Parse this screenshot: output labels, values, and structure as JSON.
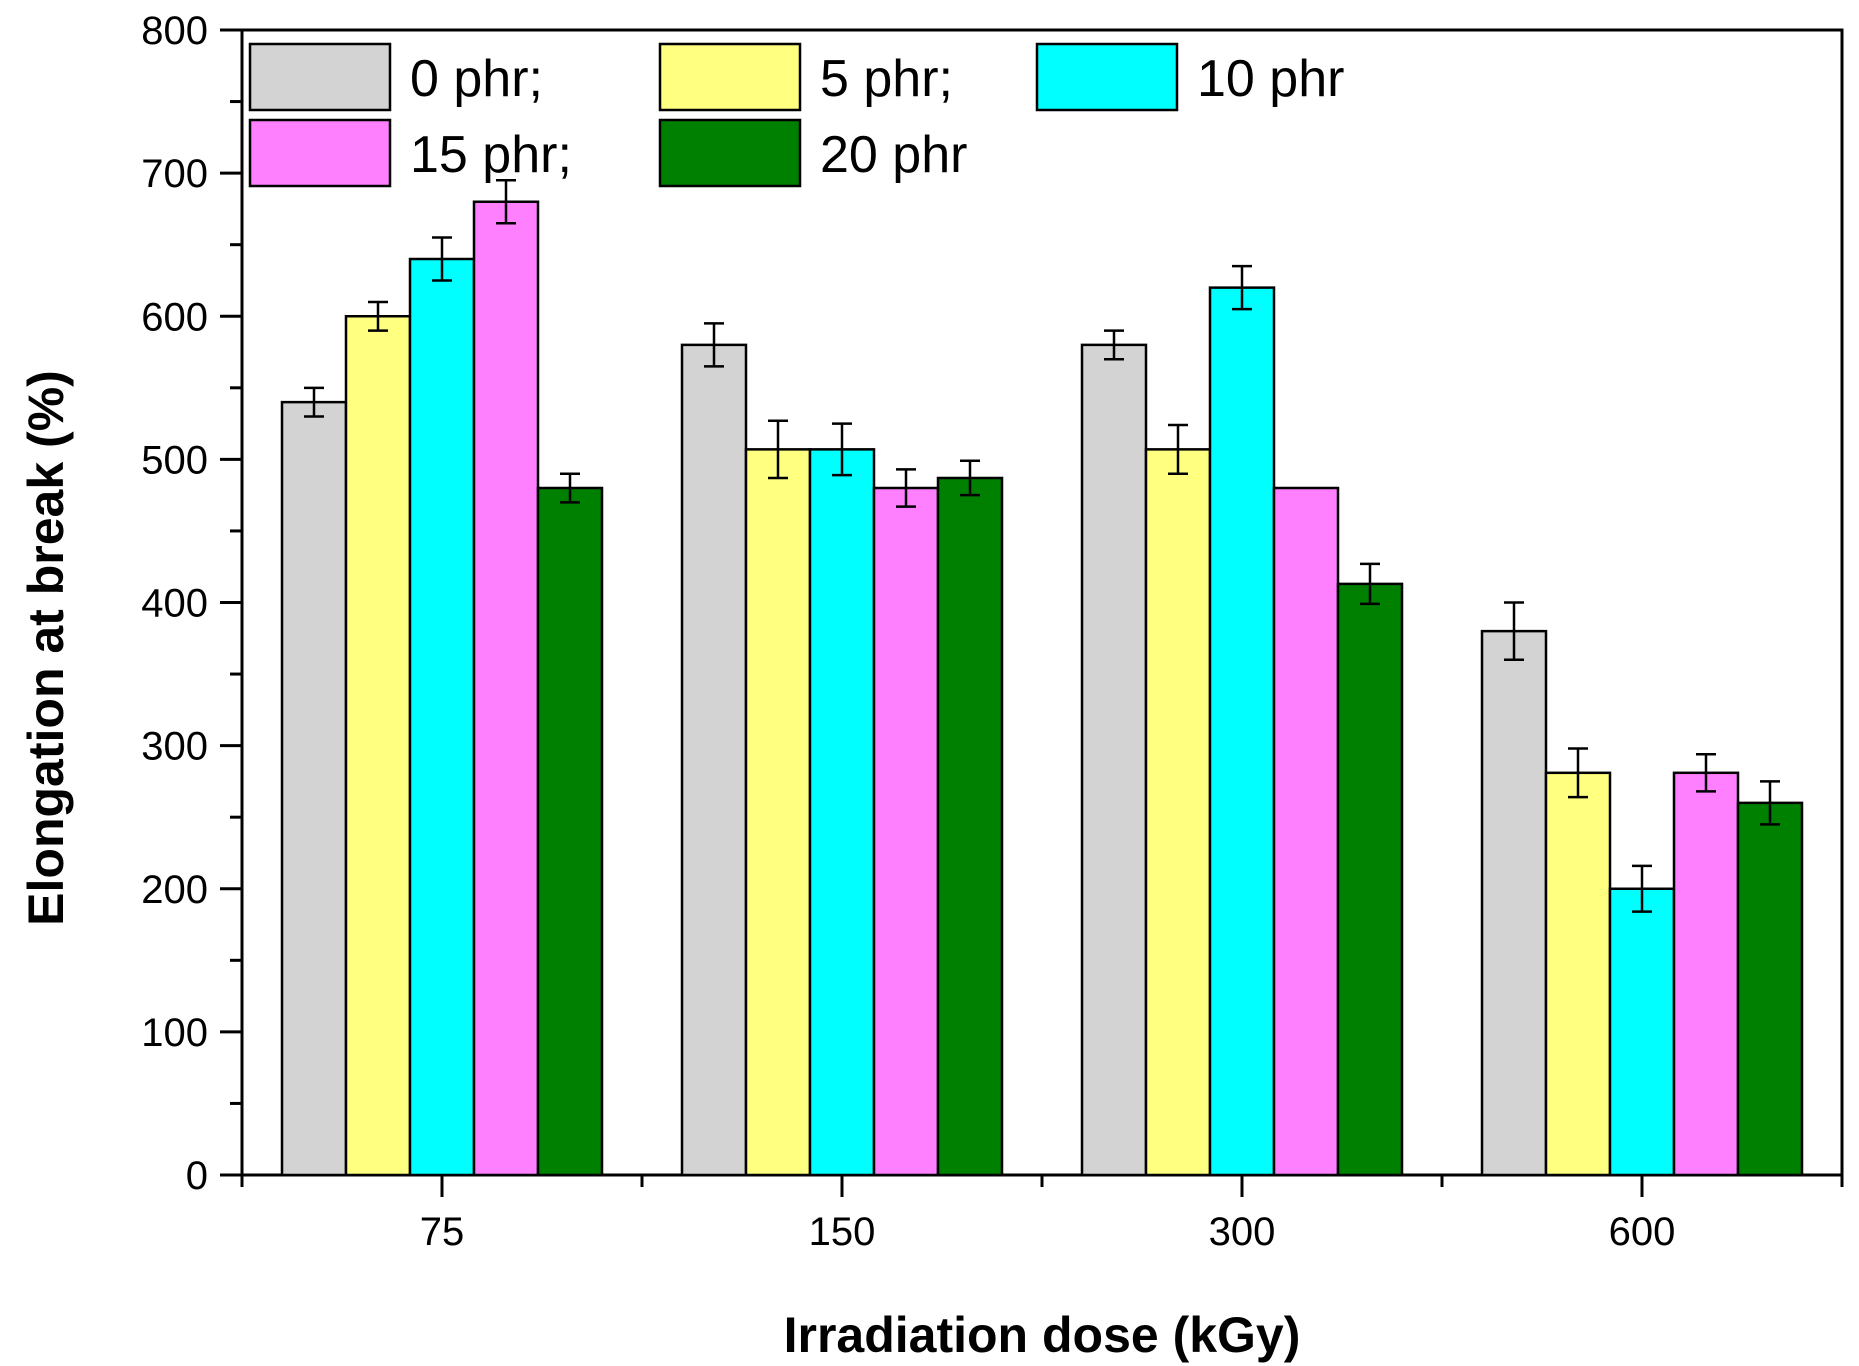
{
  "chart_data": {
    "type": "bar",
    "title": "",
    "xlabel": "Irradiation dose (kGy)",
    "ylabel": "Elongation at break (%)",
    "ylim": [
      0,
      800
    ],
    "yticks": [
      "0",
      "100",
      "200",
      "300",
      "400",
      "500",
      "600",
      "700",
      "800"
    ],
    "categories": [
      "75",
      "150",
      "300",
      "600"
    ],
    "legend_position": "top-left",
    "series": [
      {
        "name": "0 phr;",
        "color": "#d3d3d3",
        "values": [
          540,
          580,
          580,
          380
        ],
        "errors": [
          10,
          15,
          10,
          20
        ]
      },
      {
        "name": "5 phr;",
        "color": "#ffff80",
        "values": [
          600,
          507,
          507,
          281
        ],
        "errors": [
          10,
          20,
          17,
          17
        ]
      },
      {
        "name": "10 phr",
        "color": "#00ffff",
        "values": [
          640,
          507,
          620,
          200
        ],
        "errors": [
          15,
          18,
          15,
          16
        ]
      },
      {
        "name": "15 phr;",
        "color": "#ff80ff",
        "values": [
          680,
          480,
          480,
          281
        ],
        "errors": [
          15,
          13,
          0,
          13
        ]
      },
      {
        "name": "20 phr",
        "color": "#008000",
        "values": [
          480,
          487,
          413,
          260
        ],
        "errors": [
          10,
          12,
          14,
          15
        ]
      }
    ]
  }
}
